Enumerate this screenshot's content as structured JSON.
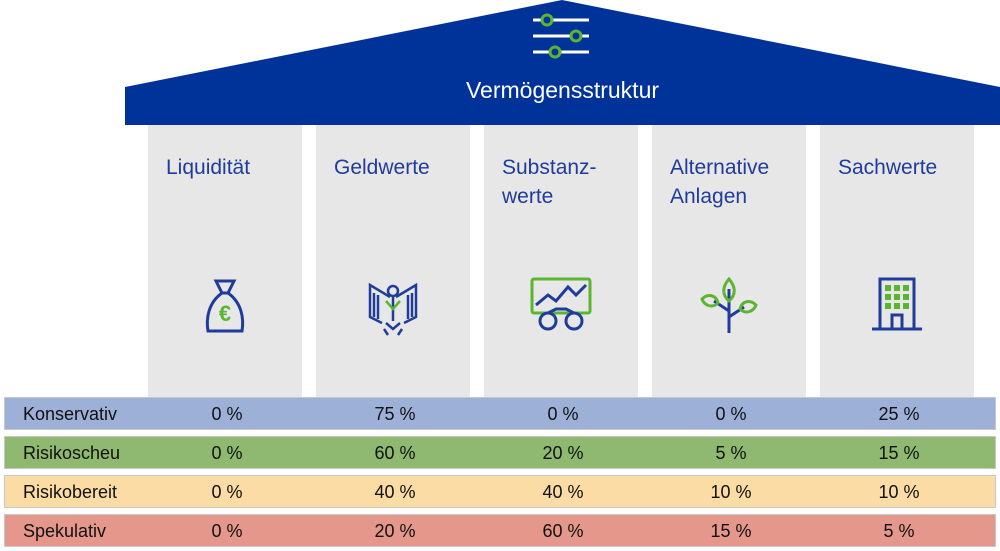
{
  "title": "Vermögensstruktur",
  "colors": {
    "roof": "#003399",
    "pillar": "#e7e7e8",
    "icon_blue": "#1f3c9a",
    "icon_green": "#5cb531"
  },
  "pillars": [
    {
      "title": "Liquidität",
      "icon": "money-bag-euro-icon"
    },
    {
      "title": "Geldwerte",
      "icon": "federal-eagle-icon"
    },
    {
      "title": "Substanz-\nwerte",
      "icon": "chart-binoculars-icon"
    },
    {
      "title": "Alternative\nAnlagen",
      "icon": "plant-icon"
    },
    {
      "title": "Sachwerte",
      "icon": "building-icon"
    }
  ],
  "profiles": [
    {
      "name": "Konservativ",
      "color": "#9db0d8",
      "values": [
        "0 %",
        "75 %",
        "0 %",
        "0 %",
        "25 %"
      ]
    },
    {
      "name": "Risikoscheu",
      "color": "#8fb870",
      "values": [
        "0 %",
        "60 %",
        "20 %",
        "5 %",
        "15 %"
      ]
    },
    {
      "name": "Risikobereit",
      "color": "#fbdca4",
      "values": [
        "0 %",
        "40 %",
        "40 %",
        "10 %",
        "10 %"
      ]
    },
    {
      "name": "Spekulativ",
      "color": "#e6978b",
      "values": [
        "0 %",
        "20 %",
        "60 %",
        "15 %",
        "5 %"
      ]
    }
  ]
}
